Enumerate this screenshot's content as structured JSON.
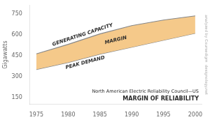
{
  "chart_data": {
    "type": "area",
    "title": "MARGIN OF RELIABILITY",
    "subtitle": "North American Electric Reliability Council—US",
    "ylabel": "Gigawatts",
    "annotations": [
      "MARGIN",
      "analyzed by Coursedigm  designology.net"
    ],
    "x": [
      1975,
      1980,
      1985,
      1990,
      1995,
      2000
    ],
    "series": [
      {
        "name": "GENERATING CAPACITY",
        "color": "#888888",
        "values": [
          462,
          530,
          605,
          665,
          705,
          735
        ]
      },
      {
        "name": "PEAK DEMAND",
        "color": "#888888",
        "values": [
          350,
          400,
          460,
          510,
          560,
          610
        ]
      }
    ],
    "color": "#f5c98a",
    "xlim": [
      1974,
      2001
    ],
    "xticks": [
      1975,
      1980,
      1985,
      1990,
      1995,
      2000
    ],
    "ylim": [
      100,
      810
    ],
    "yticks": [
      150,
      300,
      450,
      600,
      750
    ],
    "grid": false
  }
}
